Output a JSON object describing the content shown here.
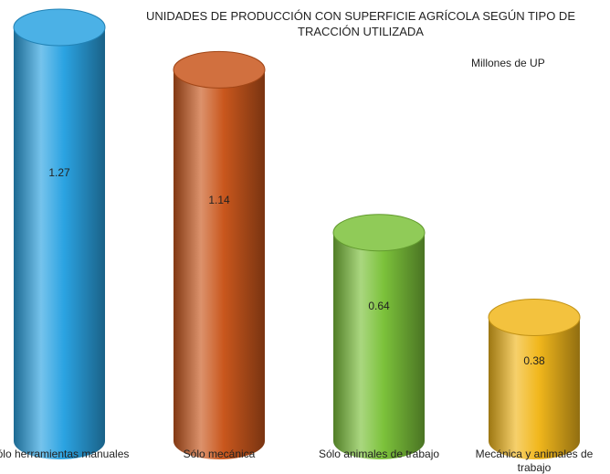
{
  "chart_data": {
    "type": "cylinder-bar",
    "title": "UNIDADES DE PRODUCCIÓN CON SUPERFICIE AGRÍCOLA SEGÚN TIPO DE TRACCIÓN UTILIZADA",
    "subtitle": "Millones de UP",
    "categories": [
      "Sólo herramientas manuales",
      "Sólo mecánica",
      "Sólo animales de trabajo",
      "Mecánica y animales de trabajo"
    ],
    "values": [
      1.27,
      1.14,
      0.64,
      0.38
    ],
    "colors": [
      "#2ba3e2",
      "#c9571d",
      "#7cc23b",
      "#f1b71c"
    ]
  }
}
